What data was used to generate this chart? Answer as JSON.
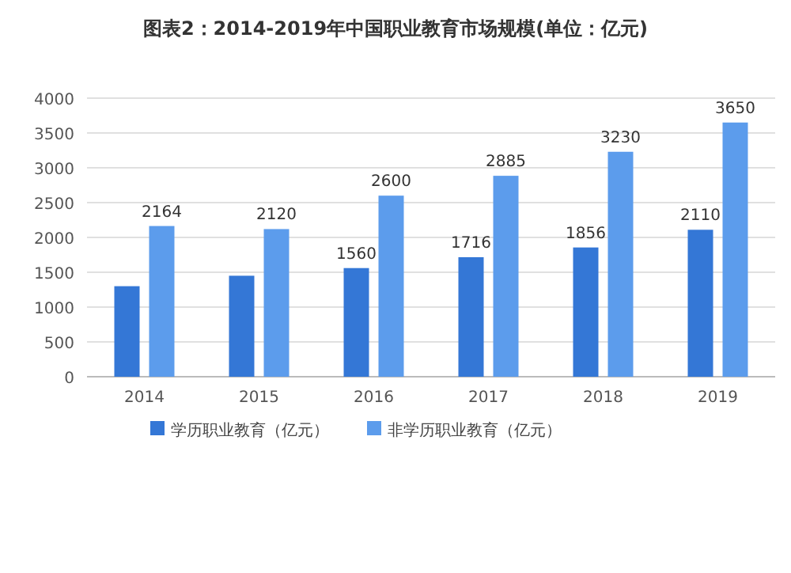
{
  "chart_data": {
    "type": "bar",
    "title": "图表2：2014-2019年中国职业教育市场规模(单位：亿元)",
    "categories": [
      "2014",
      "2015",
      "2016",
      "2017",
      "2018",
      "2019"
    ],
    "series": [
      {
        "name": "学历职业教育（亿元）",
        "color": "#3477d6",
        "values": [
          1300,
          1450,
          1560,
          1716,
          1856,
          2110
        ],
        "value_labels": [
          null,
          null,
          "1560",
          "1716",
          "1856",
          "2110"
        ]
      },
      {
        "name": "非学历职业教育（亿元）",
        "color": "#5c9cec",
        "values": [
          2164,
          2120,
          2600,
          2885,
          3230,
          3650
        ],
        "value_labels": [
          "2164",
          "2120",
          "2600",
          "2885",
          "3230",
          "3650"
        ]
      }
    ],
    "ylim": [
      0,
      4000
    ],
    "yticks": [
      0,
      500,
      1000,
      1500,
      2000,
      2500,
      3000,
      3500,
      4000
    ],
    "grid": "y",
    "legend": "bottom"
  }
}
